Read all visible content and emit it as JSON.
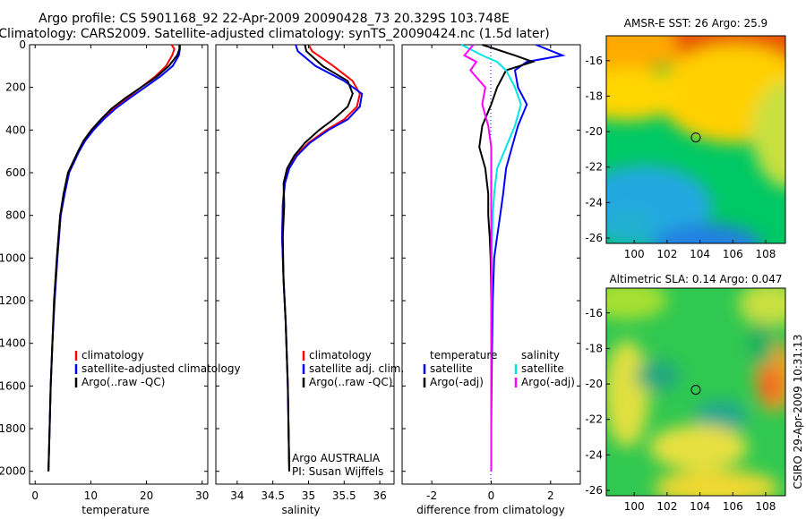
{
  "header": {
    "line1": "Argo profile: CS 5901168_92 22-Apr-2009 20090428_73 20.329S 103.748E",
    "line2": "Climatology: CARS2009. Satellite-adjusted climatology: synTS_20090424.nc (1.5d later)"
  },
  "side_label": "CSIRO 29-Apr-2009 10:31:13",
  "colors": {
    "climatology": "#ff0000",
    "satellite": "#0000ff",
    "argo": "#000000",
    "satellite_salinity": "#00e5e5",
    "argo_salinity": "#ff00ff"
  },
  "chart_data": [
    {
      "type": "line",
      "panel": "temperature",
      "xlabel": "temperature",
      "ylabel": "",
      "xlim": [
        -1,
        31
      ],
      "ylim": [
        2060,
        0
      ],
      "y_reversed": true,
      "xticks": [
        0,
        10,
        20,
        30
      ],
      "yticks": [
        0,
        200,
        400,
        600,
        800,
        1000,
        1200,
        1400,
        1600,
        1800,
        2000
      ],
      "legend": [
        "climatology",
        "satellite-adjusted climatology",
        "Argo(..raw -QC)"
      ],
      "series": [
        {
          "name": "climatology",
          "color": "#ff0000",
          "x": [
            24.5,
            25.0,
            24.6,
            23.5,
            21.5,
            19.0,
            16.5,
            14.0,
            12.0,
            10.2,
            8.8,
            7.8,
            6.9,
            6.0,
            5.2,
            4.5,
            3.9,
            3.4,
            3.1,
            2.8,
            2.6,
            2.4
          ],
          "y": [
            0,
            20,
            50,
            100,
            150,
            200,
            250,
            300,
            350,
            400,
            450,
            500,
            550,
            600,
            700,
            800,
            1000,
            1200,
            1400,
            1600,
            1800,
            2000
          ]
        },
        {
          "name": "satellite-adjusted climatology",
          "color": "#0000ff",
          "x": [
            26.0,
            26.0,
            25.8,
            24.7,
            22.4,
            19.7,
            17.0,
            14.4,
            12.3,
            10.5,
            9.0,
            7.9,
            7.0,
            6.1,
            5.3,
            4.6,
            4.0,
            3.5,
            3.1,
            2.8,
            2.6,
            2.4
          ],
          "y": [
            0,
            20,
            50,
            100,
            150,
            200,
            250,
            300,
            350,
            400,
            450,
            500,
            550,
            600,
            700,
            800,
            1000,
            1200,
            1400,
            1600,
            1800,
            2000
          ]
        },
        {
          "name": "Argo(..raw -QC)",
          "color": "#000000",
          "x": [
            25.9,
            25.9,
            25.5,
            24.0,
            21.8,
            19.0,
            16.2,
            13.7,
            11.8,
            10.1,
            8.7,
            7.7,
            6.8,
            5.9,
            5.1,
            4.5,
            3.9,
            3.4,
            3.1,
            2.8,
            2.6,
            2.4
          ],
          "y": [
            0,
            20,
            50,
            100,
            150,
            200,
            250,
            300,
            350,
            400,
            450,
            500,
            550,
            600,
            700,
            800,
            1000,
            1200,
            1400,
            1600,
            1800,
            2000
          ]
        }
      ]
    },
    {
      "type": "line",
      "panel": "salinity",
      "xlabel": "salinity",
      "ylabel": "",
      "xlim": [
        33.7,
        36.2
      ],
      "ylim": [
        2060,
        0
      ],
      "y_reversed": true,
      "xticks": [
        34,
        34.5,
        35,
        35.5,
        36
      ],
      "legend": [
        "climatology",
        "satellite adj. clim.",
        "Argo(..raw -QC)"
      ],
      "annotations": [
        "Argo AUSTRALIA",
        "PI: Susan Wijffels"
      ],
      "series": [
        {
          "name": "climatology",
          "color": "#ff0000",
          "x": [
            35.0,
            35.05,
            35.35,
            35.62,
            35.72,
            35.68,
            35.5,
            35.25,
            35.0,
            34.82,
            34.72,
            34.66,
            34.64,
            34.63,
            34.65,
            34.68,
            34.71,
            34.72,
            34.73
          ],
          "y": [
            0,
            30,
            100,
            170,
            230,
            290,
            350,
            400,
            460,
            520,
            580,
            650,
            750,
            900,
            1100,
            1300,
            1600,
            1800,
            2000
          ]
        },
        {
          "name": "satellite adj. clim.",
          "color": "#0000ff",
          "x": [
            34.82,
            34.85,
            35.1,
            35.5,
            35.75,
            35.72,
            35.55,
            35.28,
            35.02,
            34.84,
            34.73,
            34.67,
            34.64,
            34.63,
            34.65,
            34.68,
            34.71,
            34.72,
            34.73
          ],
          "y": [
            0,
            30,
            100,
            170,
            230,
            290,
            350,
            400,
            460,
            520,
            580,
            650,
            750,
            900,
            1100,
            1300,
            1600,
            1800,
            2000
          ]
        },
        {
          "name": "Argo(..raw -QC)",
          "color": "#000000",
          "x": [
            34.95,
            34.97,
            35.2,
            35.55,
            35.62,
            35.55,
            35.35,
            35.15,
            34.95,
            34.8,
            34.7,
            34.65,
            34.66,
            34.64,
            34.65,
            34.68,
            34.71,
            34.72,
            34.73
          ],
          "y": [
            0,
            30,
            100,
            170,
            230,
            290,
            350,
            400,
            460,
            520,
            580,
            650,
            750,
            900,
            1100,
            1300,
            1600,
            1800,
            2000
          ]
        }
      ]
    },
    {
      "type": "line",
      "panel": "difference",
      "xlabel": "difference from climatology",
      "ylabel": "",
      "xlim": [
        -3,
        3
      ],
      "ylim": [
        2060,
        0
      ],
      "y_reversed": true,
      "xticks": [
        -2,
        0,
        2
      ],
      "legend": [
        "temperature",
        "satellite",
        "Argo(-adj)",
        "salinity",
        "satellite",
        "Argo(-adj)"
      ],
      "series": [
        {
          "name": "temperature satellite",
          "color": "#0000ff",
          "x": [
            1.5,
            2.4,
            1.2,
            0.8,
            0.9,
            1.2,
            0.9,
            0.7,
            0.5,
            0.4,
            0.3,
            0.2,
            0.1,
            0.05,
            0.02,
            0.0,
            0.0
          ],
          "y": [
            0,
            50,
            80,
            120,
            200,
            280,
            380,
            480,
            580,
            700,
            800,
            900,
            1000,
            1200,
            1500,
            1800,
            2000
          ]
        },
        {
          "name": "temperature Argo(-adj)",
          "color": "#000000",
          "x": [
            -0.3,
            0.8,
            1.4,
            0.5,
            0.2,
            0.0,
            -0.3,
            -0.4,
            -0.2,
            -0.1,
            -0.1,
            -0.05,
            -0.02,
            0.0,
            0.0,
            0.0,
            0.0
          ],
          "y": [
            0,
            50,
            80,
            120,
            200,
            280,
            380,
            480,
            580,
            700,
            800,
            900,
            1000,
            1200,
            1500,
            1800,
            2000
          ]
        },
        {
          "name": "salinity satellite",
          "color": "#00e5e5",
          "x": [
            -1.0,
            -0.3,
            0.2,
            0.5,
            0.8,
            1.0,
            0.8,
            0.5,
            0.2,
            0.1,
            0.05,
            0.03,
            0.02,
            0.01,
            0.0,
            0.0,
            0.0
          ],
          "y": [
            0,
            50,
            80,
            120,
            200,
            280,
            380,
            480,
            580,
            700,
            800,
            900,
            1000,
            1200,
            1500,
            1800,
            2000
          ]
        },
        {
          "name": "salinity Argo(-adj)",
          "color": "#ff00ff",
          "x": [
            -0.6,
            -0.9,
            -0.5,
            -0.7,
            -0.2,
            -0.3,
            -0.1,
            0.0,
            0.0,
            0.0,
            0.0,
            0.0,
            0.0,
            0.0,
            0.0,
            0.0,
            0.0
          ],
          "y": [
            0,
            50,
            80,
            120,
            200,
            280,
            380,
            480,
            580,
            700,
            800,
            900,
            1000,
            1200,
            1500,
            1800,
            2000
          ]
        }
      ]
    },
    {
      "type": "heatmap",
      "panel": "sst-map",
      "title": "AMSR-E SST: 26 Argo: 25.9",
      "xlim": [
        98.3,
        109.2
      ],
      "ylim": [
        -26.3,
        -14.6
      ],
      "xticks": [
        100,
        102,
        104,
        106,
        108
      ],
      "yticks": [
        -16,
        -18,
        -20,
        -22,
        -24,
        -26
      ],
      "marker": {
        "lon": 103.748,
        "lat": -20.329
      }
    },
    {
      "type": "heatmap",
      "panel": "sla-map",
      "title": "Altimetric SLA: 0.14 Argo: 0.047",
      "xlim": [
        98.3,
        109.2
      ],
      "ylim": [
        -26.3,
        -14.6
      ],
      "xticks": [
        100,
        102,
        104,
        106,
        108
      ],
      "yticks": [
        -16,
        -18,
        -20,
        -22,
        -24,
        -26
      ],
      "marker": {
        "lon": 103.748,
        "lat": -20.329
      }
    }
  ]
}
